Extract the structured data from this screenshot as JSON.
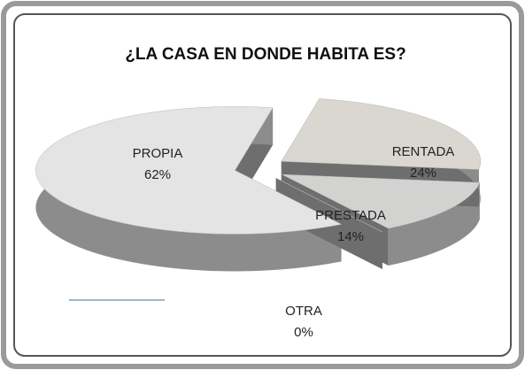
{
  "chart_data": {
    "type": "pie",
    "title": "¿LA CASA EN DONDE HABITA ES?",
    "categories": [
      "PROPIA",
      "RENTADA",
      "PRESTADA",
      "OTRA"
    ],
    "values": [
      62,
      24,
      14,
      0
    ],
    "value_labels": [
      "62%",
      "24%",
      "14%",
      "0%"
    ],
    "colors": [
      "#e4e4e4",
      "#d9d7cf",
      "#d2d2d0",
      "#cfcfcf"
    ]
  }
}
